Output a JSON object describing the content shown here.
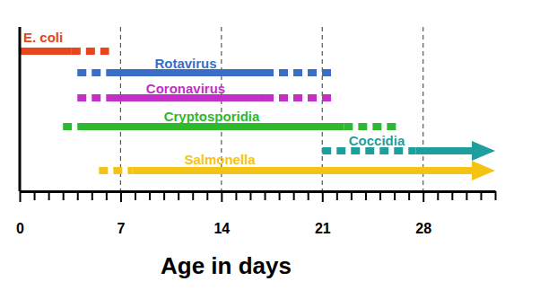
{
  "chart_data": {
    "type": "timeline",
    "x_label": "Age in days",
    "xlim": [
      0,
      33
    ],
    "xticks": [
      0,
      7,
      14,
      21,
      28
    ],
    "minor_xticks": [
      1,
      2,
      3,
      4,
      5,
      6,
      8,
      9,
      10,
      11,
      12,
      13,
      15,
      16,
      17,
      18,
      19,
      20,
      22,
      23,
      24,
      25,
      26,
      27,
      29,
      30,
      31,
      32,
      33
    ],
    "grid": true,
    "tick_labels": "x",
    "series": [
      {
        "name": "E. coli",
        "color": "#e8441e",
        "segments": [
          {
            "start": 0,
            "end": 3.6,
            "line_style": "solid"
          },
          {
            "start": 3.6,
            "end": 6.2,
            "line_style": "dashed"
          }
        ]
      },
      {
        "name": "Rotavirus",
        "color": "#3a6ec6",
        "segments": [
          {
            "start": 4,
            "end": 6,
            "line_style": "dashed"
          },
          {
            "start": 6,
            "end": 17,
            "line_style": "solid"
          },
          {
            "start": 17,
            "end": 21.7,
            "line_style": "dashed"
          }
        ]
      },
      {
        "name": "Coronavirus",
        "color": "#c22ec8",
        "segments": [
          {
            "start": 4,
            "end": 6,
            "line_style": "dashed"
          },
          {
            "start": 6,
            "end": 17,
            "line_style": "solid"
          },
          {
            "start": 17,
            "end": 21.7,
            "line_style": "dashed"
          }
        ]
      },
      {
        "name": "Cryptosporidia",
        "color": "#2eb82e",
        "segments": [
          {
            "start": 3,
            "end": 4,
            "line_style": "dashed"
          },
          {
            "start": 4,
            "end": 22.5,
            "line_style": "solid"
          },
          {
            "start": 22.5,
            "end": 26.4,
            "line_style": "dashed"
          }
        ]
      },
      {
        "name": "Coccidia",
        "color": "#1f9e9e",
        "marker": "arrow",
        "segments": [
          {
            "start": 21,
            "end": 27.5,
            "line_style": "dashed"
          },
          {
            "start": 27.5,
            "end": 33,
            "line_style": "solid"
          }
        ]
      },
      {
        "name": "Salmonella",
        "color": "#f4c414",
        "marker": "arrow",
        "segments": [
          {
            "start": 5.5,
            "end": 7.8,
            "line_style": "dashed"
          },
          {
            "start": 7.8,
            "end": 33,
            "line_style": "solid"
          }
        ]
      }
    ]
  }
}
